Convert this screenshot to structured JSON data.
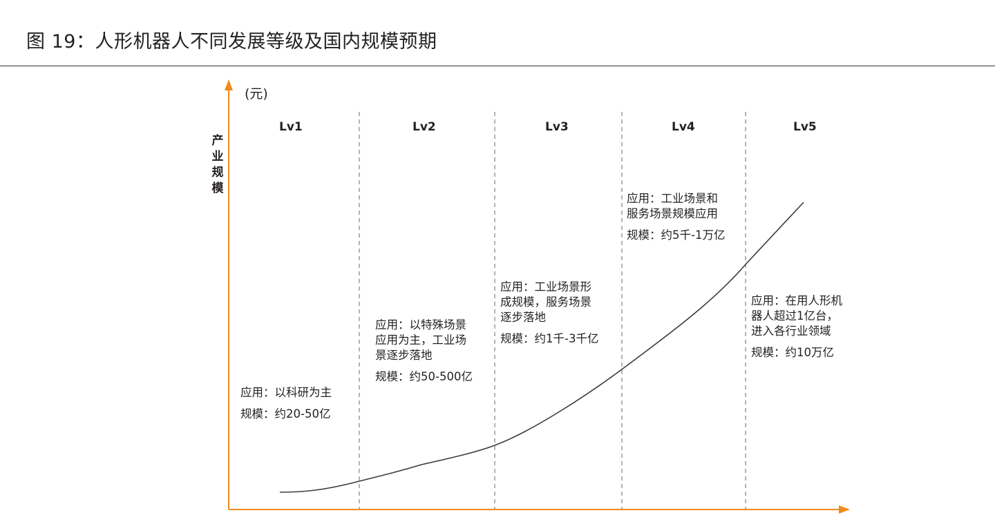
{
  "figure": {
    "title": "图 19：人形机器人不同发展等级及国内规模预期"
  },
  "axes": {
    "y_unit": "(元)",
    "y_label": "产业规模",
    "color": "#f0891e"
  },
  "levels": [
    {
      "name": "Lv1",
      "application": "应用：以科研为主",
      "scale": "规模：约20-50亿"
    },
    {
      "name": "Lv2",
      "application": "应用：以特殊场景\n应用为主，工业场\n景逐步落地",
      "scale": "规模：约50-500亿"
    },
    {
      "name": "Lv3",
      "application": "应用：工业场景形\n成规模，服务场景\n逐步落地",
      "scale": "规模：约1千-3千亿"
    },
    {
      "name": "Lv4",
      "application": "应用：工业场景和\n服务场景规模应用",
      "scale": "规模：约5千-1万亿"
    },
    {
      "name": "Lv5",
      "application": "应用：在用人形机\n器人超过1亿台，\n进入各行业领域",
      "scale": "规模：约10万亿"
    }
  ]
}
